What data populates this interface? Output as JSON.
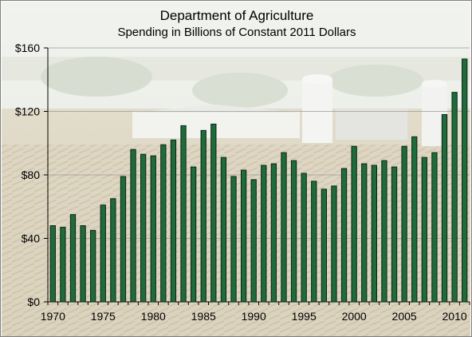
{
  "chart_data": {
    "type": "bar",
    "title": "Department of Agriculture",
    "subtitle": "Spending in Billions of Constant 2011 Dollars",
    "xlabel": "",
    "ylabel": "",
    "ylim": [
      0,
      160
    ],
    "y_ticks": [
      0,
      40,
      80,
      120,
      160
    ],
    "y_tick_labels": [
      "$0",
      "$40",
      "$80",
      "$120",
      "$160"
    ],
    "x_tick_labels": [
      "1970",
      "1975",
      "1980",
      "1985",
      "1990",
      "1995",
      "2000",
      "2005",
      "2010"
    ],
    "grid": true,
    "legend": "none",
    "background": "faded farm photograph (barns, silos, corn field)",
    "bar_color": "#1f6b3a",
    "bar_edge_color": "#0b2414",
    "categories": [
      1970,
      1971,
      1972,
      1973,
      1974,
      1975,
      1976,
      1977,
      1978,
      1979,
      1980,
      1981,
      1982,
      1983,
      1984,
      1985,
      1986,
      1987,
      1988,
      1989,
      1990,
      1991,
      1992,
      1993,
      1994,
      1995,
      1996,
      1997,
      1998,
      1999,
      2000,
      2001,
      2002,
      2003,
      2004,
      2005,
      2006,
      2007,
      2008,
      2009,
      2010,
      2011
    ],
    "values": [
      48,
      47,
      55,
      48,
      45,
      61,
      65,
      79,
      96,
      93,
      92,
      99,
      102,
      111,
      85,
      108,
      112,
      91,
      79,
      83,
      77,
      86,
      87,
      94,
      89,
      81,
      76,
      71,
      73,
      84,
      98,
      87,
      86,
      89,
      85,
      98,
      104,
      91,
      94,
      118,
      132,
      153
    ]
  }
}
